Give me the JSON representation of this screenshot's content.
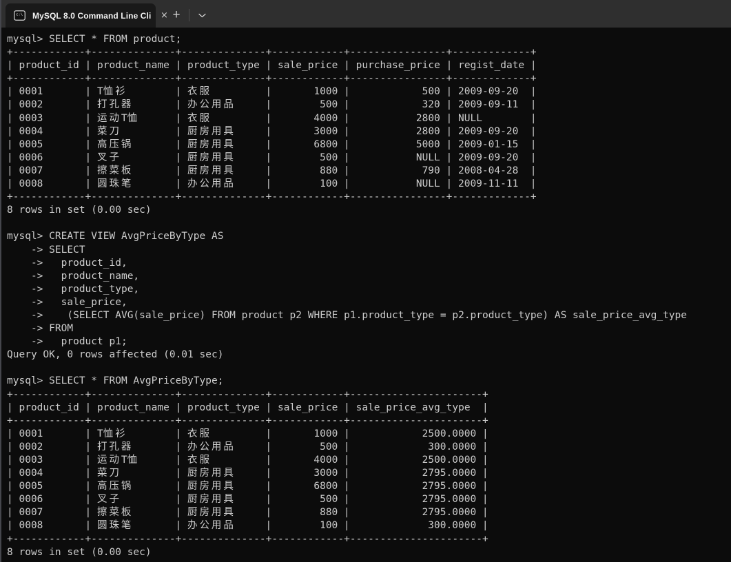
{
  "window": {
    "tab": {
      "icon_label": "c:\\",
      "title": "MySQL 8.0 Command Line Cli",
      "close_glyph": "×"
    },
    "new_tab_glyph": "+",
    "dropdown_icon": "chevron-down"
  },
  "colors": {
    "terminal_background": "#0c0c0c",
    "terminal_text": "#cccccc",
    "tabbar_background": "#2f2f2f",
    "active_tab_background": "#191919",
    "tab_title_text": "#f2f2f2"
  },
  "session": {
    "prompt": "mysql>",
    "continuation_prompt": "->",
    "commands": [
      {
        "input": "SELECT * FROM product;",
        "result": {
          "columns": [
            "product_id",
            "product_name",
            "product_type",
            "sale_price",
            "purchase_price",
            "regist_date"
          ],
          "rows": [
            [
              "0001",
              "T恤衫",
              "衣服",
              "1000",
              "500",
              "2009-09-20"
            ],
            [
              "0002",
              "打孔器",
              "办公用品",
              "500",
              "320",
              "2009-09-11"
            ],
            [
              "0003",
              "运动T恤",
              "衣服",
              "4000",
              "2800",
              "NULL"
            ],
            [
              "0004",
              "菜刀",
              "厨房用具",
              "3000",
              "2800",
              "2009-09-20"
            ],
            [
              "0005",
              "高压锅",
              "厨房用具",
              "6800",
              "5000",
              "2009-01-15"
            ],
            [
              "0006",
              "叉子",
              "厨房用具",
              "500",
              "NULL",
              "2009-09-20"
            ],
            [
              "0007",
              "擦菜板",
              "厨房用具",
              "880",
              "790",
              "2008-04-28"
            ],
            [
              "0008",
              "圆珠笔",
              "办公用品",
              "100",
              "NULL",
              "2009-11-11"
            ]
          ],
          "status": "8 rows in set (0.00 sec)"
        }
      },
      {
        "input_lines": [
          "CREATE VIEW AvgPriceByType AS",
          "SELECT",
          "  product_id,",
          "  product_name,",
          "  product_type,",
          "  sale_price,",
          "   (SELECT AVG(sale_price) FROM product p2 WHERE p1.product_type = p2.product_type) AS sale_price_avg_type",
          "FROM",
          "  product p1;"
        ],
        "status": "Query OK, 0 rows affected (0.01 sec)"
      },
      {
        "input": "SELECT * FROM AvgPriceByType;",
        "result": {
          "columns": [
            "product_id",
            "product_name",
            "product_type",
            "sale_price",
            "sale_price_avg_type"
          ],
          "rows": [
            [
              "0001",
              "T恤衫",
              "衣服",
              "1000",
              "2500.0000"
            ],
            [
              "0002",
              "打孔器",
              "办公用品",
              "500",
              "300.0000"
            ],
            [
              "0003",
              "运动T恤",
              "衣服",
              "4000",
              "2500.0000"
            ],
            [
              "0004",
              "菜刀",
              "厨房用具",
              "3000",
              "2795.0000"
            ],
            [
              "0005",
              "高压锅",
              "厨房用具",
              "6800",
              "2795.0000"
            ],
            [
              "0006",
              "叉子",
              "厨房用具",
              "500",
              "2795.0000"
            ],
            [
              "0007",
              "擦菜板",
              "厨房用具",
              "880",
              "2795.0000"
            ],
            [
              "0008",
              "圆珠笔",
              "办公用品",
              "100",
              "300.0000"
            ]
          ],
          "status": "8 rows in set (0.00 sec)"
        }
      }
    ]
  },
  "terminal": {
    "lines": [
      "mysql> SELECT * FROM product;",
      "+------------+--------------+--------------+------------+----------------+-------------+",
      "| product_id | product_name | product_type | sale_price | purchase_price | regist_date |",
      "+------------+--------------+--------------+------------+----------------+-------------+",
      "| 0001       | T恤衫        | 衣服         |       1000 |            500 | 2009-09-20  |",
      "| 0002       | 打孔器       | 办公用品     |        500 |            320 | 2009-09-11  |",
      "| 0003       | 运动T恤      | 衣服         |       4000 |           2800 | NULL        |",
      "| 0004       | 菜刀         | 厨房用具     |       3000 |           2800 | 2009-09-20  |",
      "| 0005       | 高压锅       | 厨房用具     |       6800 |           5000 | 2009-01-15  |",
      "| 0006       | 叉子         | 厨房用具     |        500 |           NULL | 2009-09-20  |",
      "| 0007       | 擦菜板       | 厨房用具     |        880 |            790 | 2008-04-28  |",
      "| 0008       | 圆珠笔       | 办公用品     |        100 |           NULL | 2009-11-11  |",
      "+------------+--------------+--------------+------------+----------------+-------------+",
      "8 rows in set (0.00 sec)",
      "",
      "mysql> CREATE VIEW AvgPriceByType AS",
      "    -> SELECT",
      "    ->   product_id,",
      "    ->   product_name,",
      "    ->   product_type,",
      "    ->   sale_price,",
      "    ->    (SELECT AVG(sale_price) FROM product p2 WHERE p1.product_type = p2.product_type) AS sale_price_avg_type",
      "    -> FROM",
      "    ->   product p1;",
      "Query OK, 0 rows affected (0.01 sec)",
      "",
      "mysql> SELECT * FROM AvgPriceByType;",
      "+------------+--------------+--------------+------------+----------------------+",
      "| product_id | product_name | product_type | sale_price | sale_price_avg_type  |",
      "+------------+--------------+--------------+------------+----------------------+",
      "| 0001       | T恤衫        | 衣服         |       1000 |            2500.0000 |",
      "| 0002       | 打孔器       | 办公用品     |        500 |             300.0000 |",
      "| 0003       | 运动T恤      | 衣服         |       4000 |            2500.0000 |",
      "| 0004       | 菜刀         | 厨房用具     |       3000 |            2795.0000 |",
      "| 0005       | 高压锅       | 厨房用具     |       6800 |            2795.0000 |",
      "| 0006       | 叉子         | 厨房用具     |        500 |            2795.0000 |",
      "| 0007       | 擦菜板       | 厨房用具     |        880 |            2795.0000 |",
      "| 0008       | 圆珠笔       | 办公用品     |        100 |             300.0000 |",
      "+------------+--------------+--------------+------------+----------------------+",
      "8 rows in set (0.00 sec)"
    ]
  }
}
